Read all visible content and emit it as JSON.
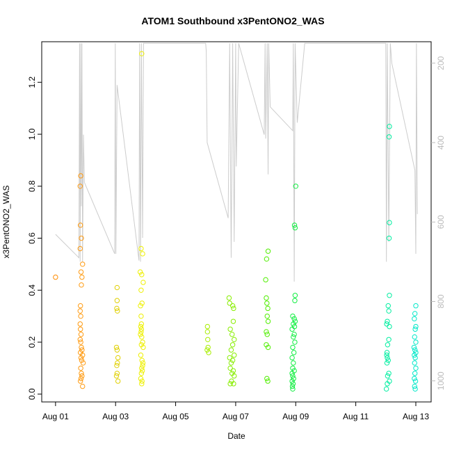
{
  "chart_data": {
    "type": "scatter",
    "title": "ATOM1 Southbound x3PentONO2_WAS",
    "xlabel": "Date",
    "ylabel": "x3PentONO2_WAS",
    "xlim": [
      0.54,
      13.51
    ],
    "xticks": [
      {
        "value": 1,
        "label": "Aug 01"
      },
      {
        "value": 3,
        "label": "Aug 03"
      },
      {
        "value": 5,
        "label": "Aug 05"
      },
      {
        "value": 7,
        "label": "Aug 07"
      },
      {
        "value": 9,
        "label": "Aug 09"
      },
      {
        "value": 11,
        "label": "Aug 11"
      },
      {
        "value": 13,
        "label": "Aug 13"
      }
    ],
    "ylim": [
      -0.03,
      1.356
    ],
    "yticks": [
      {
        "value": 0,
        "label": "0.0"
      },
      0.2,
      0.4,
      0.6,
      0.8,
      {
        "value": 1,
        "label": "1.0"
      },
      1.2
    ],
    "y2lim": [
      1053,
      146
    ],
    "y2ticks": [
      200,
      400,
      600,
      800,
      1000
    ],
    "series": [
      {
        "color": "#ff8c00",
        "x": [
          1.0
        ],
        "values": [
          0.45
        ]
      },
      {
        "color": "#ff9a10",
        "x": [
          1.84,
          1.82,
          1.83,
          1.86,
          1.82,
          1.9,
          1.85,
          1.88,
          1.86,
          1.83,
          1.82,
          1.84,
          1.82,
          1.83,
          1.85,
          1.82,
          1.84,
          1.86,
          1.88,
          1.83,
          1.9,
          1.85,
          1.87,
          1.92,
          1.84,
          1.86,
          1.88,
          1.85,
          1.83,
          1.9
        ],
        "values": [
          0.84,
          0.8,
          0.65,
          0.6,
          0.56,
          0.5,
          0.47,
          0.45,
          0.42,
          0.34,
          0.32,
          0.3,
          0.27,
          0.25,
          0.23,
          0.21,
          0.2,
          0.18,
          0.17,
          0.16,
          0.15,
          0.14,
          0.13,
          0.12,
          0.1,
          0.08,
          0.07,
          0.06,
          0.05,
          0.03
        ]
      },
      {
        "color": "#e0d000",
        "x": [
          3.05,
          3.05,
          3.04,
          3.06,
          3.03,
          3.05,
          3.08,
          3.06,
          3.04,
          3.05,
          3.03,
          3.08
        ],
        "values": [
          0.41,
          0.36,
          0.33,
          0.32,
          0.18,
          0.17,
          0.14,
          0.12,
          0.11,
          0.08,
          0.07,
          0.05
        ]
      },
      {
        "color": "#eef000",
        "x": [
          3.87,
          3.85,
          3.9,
          3.82,
          3.87,
          3.92,
          3.85,
          3.88,
          3.83,
          3.85,
          3.86,
          3.84,
          3.86,
          3.85,
          3.83,
          3.87,
          3.9,
          3.86,
          3.92,
          3.84,
          3.88,
          3.91,
          3.9,
          3.87,
          3.89,
          3.86,
          3.84,
          3.88,
          3.87
        ],
        "values": [
          1.31,
          0.56,
          0.54,
          0.47,
          0.46,
          0.43,
          0.4,
          0.35,
          0.34,
          0.3,
          0.27,
          0.26,
          0.25,
          0.24,
          0.23,
          0.22,
          0.2,
          0.19,
          0.18,
          0.15,
          0.13,
          0.12,
          0.11,
          0.1,
          0.09,
          0.08,
          0.06,
          0.05,
          0.04
        ]
      },
      {
        "color": "#a8ee00",
        "x": [
          6.06,
          6.06,
          6.07,
          6.08,
          6.05,
          6.1
        ],
        "values": [
          0.26,
          0.24,
          0.21,
          0.18,
          0.17,
          0.16
        ]
      },
      {
        "color": "#88ee00",
        "x": [
          6.78,
          6.8,
          6.9,
          6.93,
          6.92,
          6.82,
          6.88,
          6.95,
          6.9,
          6.85,
          6.95,
          6.8,
          6.9,
          6.85,
          6.82,
          6.92,
          6.88,
          6.95,
          6.86,
          6.82,
          6.93
        ],
        "values": [
          0.37,
          0.35,
          0.34,
          0.33,
          0.28,
          0.25,
          0.23,
          0.21,
          0.19,
          0.17,
          0.15,
          0.14,
          0.13,
          0.12,
          0.1,
          0.09,
          0.08,
          0.07,
          0.05,
          0.04,
          0.04
        ]
      },
      {
        "color": "#50ee00",
        "x": [
          8.08,
          8.03,
          8.0,
          8.02,
          8.04,
          8.07,
          8.05,
          8.08,
          8.02,
          8.05,
          8.02,
          8.08,
          8.04,
          8.07
        ],
        "values": [
          0.55,
          0.52,
          0.44,
          0.37,
          0.35,
          0.33,
          0.3,
          0.28,
          0.24,
          0.23,
          0.19,
          0.18,
          0.06,
          0.05
        ]
      },
      {
        "color": "#10ee40",
        "x": [
          9.0,
          8.96,
          8.98,
          8.98,
          8.97,
          8.9,
          8.95,
          8.98,
          8.92,
          8.96,
          8.88,
          8.95,
          8.92,
          8.97,
          8.9,
          8.94,
          8.88,
          8.92,
          8.9,
          8.95,
          8.88,
          8.9,
          8.93,
          8.88,
          8.91,
          8.89,
          8.9
        ],
        "values": [
          0.8,
          0.65,
          0.64,
          0.38,
          0.36,
          0.3,
          0.29,
          0.28,
          0.27,
          0.26,
          0.25,
          0.23,
          0.22,
          0.2,
          0.18,
          0.16,
          0.14,
          0.12,
          0.1,
          0.09,
          0.08,
          0.07,
          0.06,
          0.05,
          0.04,
          0.03,
          0.02
        ]
      },
      {
        "color": "#00eea0",
        "x": [
          12.12,
          12.11,
          12.12,
          12.11,
          12.12,
          12.08,
          12.1,
          12.05,
          12.03,
          12.12,
          12.1,
          12.06,
          12.04,
          12.03,
          12.05,
          12.08,
          12.04,
          12.1,
          12.06,
          12.12,
          12.05,
          12.02
        ],
        "values": [
          1.03,
          0.99,
          0.66,
          0.6,
          0.38,
          0.34,
          0.32,
          0.28,
          0.27,
          0.26,
          0.21,
          0.19,
          0.16,
          0.15,
          0.14,
          0.13,
          0.12,
          0.08,
          0.07,
          0.05,
          0.04,
          0.02
        ]
      },
      {
        "color": "#00e8c8",
        "x": [
          13.0,
          12.97,
          12.95,
          13.0,
          12.98,
          12.96,
          13.0,
          12.94,
          12.97,
          13.0,
          12.95,
          12.98,
          12.96,
          13.0,
          12.97,
          12.95,
          12.99,
          12.96,
          12.98
        ],
        "values": [
          0.34,
          0.31,
          0.29,
          0.26,
          0.25,
          0.22,
          0.2,
          0.18,
          0.17,
          0.16,
          0.15,
          0.14,
          0.12,
          0.1,
          0.08,
          0.06,
          0.05,
          0.03,
          0.02
        ]
      },
      {
        "type": "line",
        "axis": "y2",
        "color": "#cccccc",
        "x": [
          1.0,
          1.78,
          1.8,
          1.82,
          1.84,
          1.86,
          1.88,
          1.9,
          1.93,
          1.96,
          2.97,
          2.99,
          3.01,
          3.05,
          3.78,
          3.8,
          3.83,
          3.86,
          3.9,
          3.93,
          4.0,
          6.0,
          6.02,
          6.05,
          6.75,
          6.8,
          6.85,
          6.9,
          6.95,
          7.0,
          7.02,
          7.1,
          7.95,
          7.98,
          8.0,
          8.05,
          8.08,
          8.1,
          8.15,
          8.9,
          8.92,
          8.95,
          8.98,
          9.05,
          9.3,
          12.0,
          12.02,
          12.05,
          12.1,
          12.15,
          12.2,
          12.97,
          13.0,
          13.02,
          13.05
        ],
        "values": [
          631,
          690,
          150,
          700,
          150,
          560,
          150,
          700,
          380,
          500,
          680,
          150,
          680,
          255,
          697,
          150,
          700,
          150,
          640,
          150,
          150,
          150,
          170,
          400,
          590,
          150,
          690,
          150,
          650,
          150,
          460,
          150,
          380,
          150,
          390,
          150,
          480,
          150,
          310,
          370,
          150,
          750,
          150,
          350,
          150,
          150,
          700,
          150,
          650,
          150,
          200,
          470,
          680,
          150,
          580
        ]
      }
    ]
  }
}
